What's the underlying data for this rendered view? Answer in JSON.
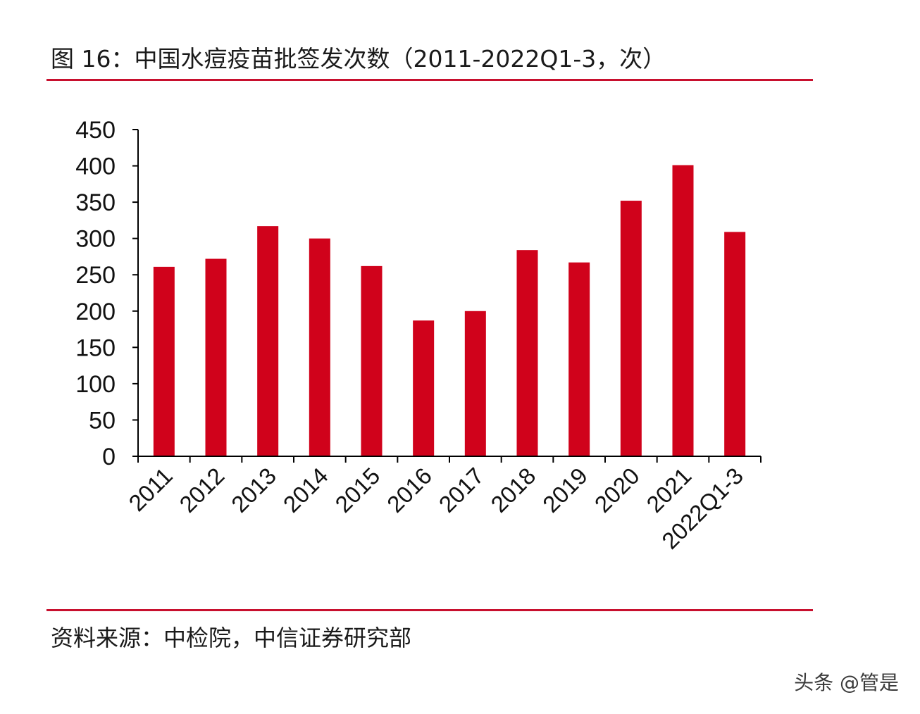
{
  "title": "图 16：中国水痘疫苗批签发次数（2011-2022Q1-3，次）",
  "source": "资料来源：中检院，中信证券研究部",
  "watermark": "头条 @管是",
  "colors": {
    "bar": "#d0021b",
    "rule": "#c8102e",
    "axis": "#000000"
  },
  "chart_data": {
    "type": "bar",
    "title": "中国水痘疫苗批签发次数（2011-2022Q1-3，次）",
    "xlabel": "",
    "ylabel": "",
    "ylim": [
      0,
      450
    ],
    "yticks": [
      0,
      50,
      100,
      150,
      200,
      250,
      300,
      350,
      400,
      450
    ],
    "categories": [
      "2011",
      "2012",
      "2013",
      "2014",
      "2015",
      "2016",
      "2017",
      "2018",
      "2019",
      "2020",
      "2021",
      "2022Q1-3"
    ],
    "values": [
      261,
      272,
      317,
      300,
      262,
      187,
      200,
      284,
      267,
      352,
      401,
      309
    ],
    "grid": false,
    "legend": "none"
  }
}
